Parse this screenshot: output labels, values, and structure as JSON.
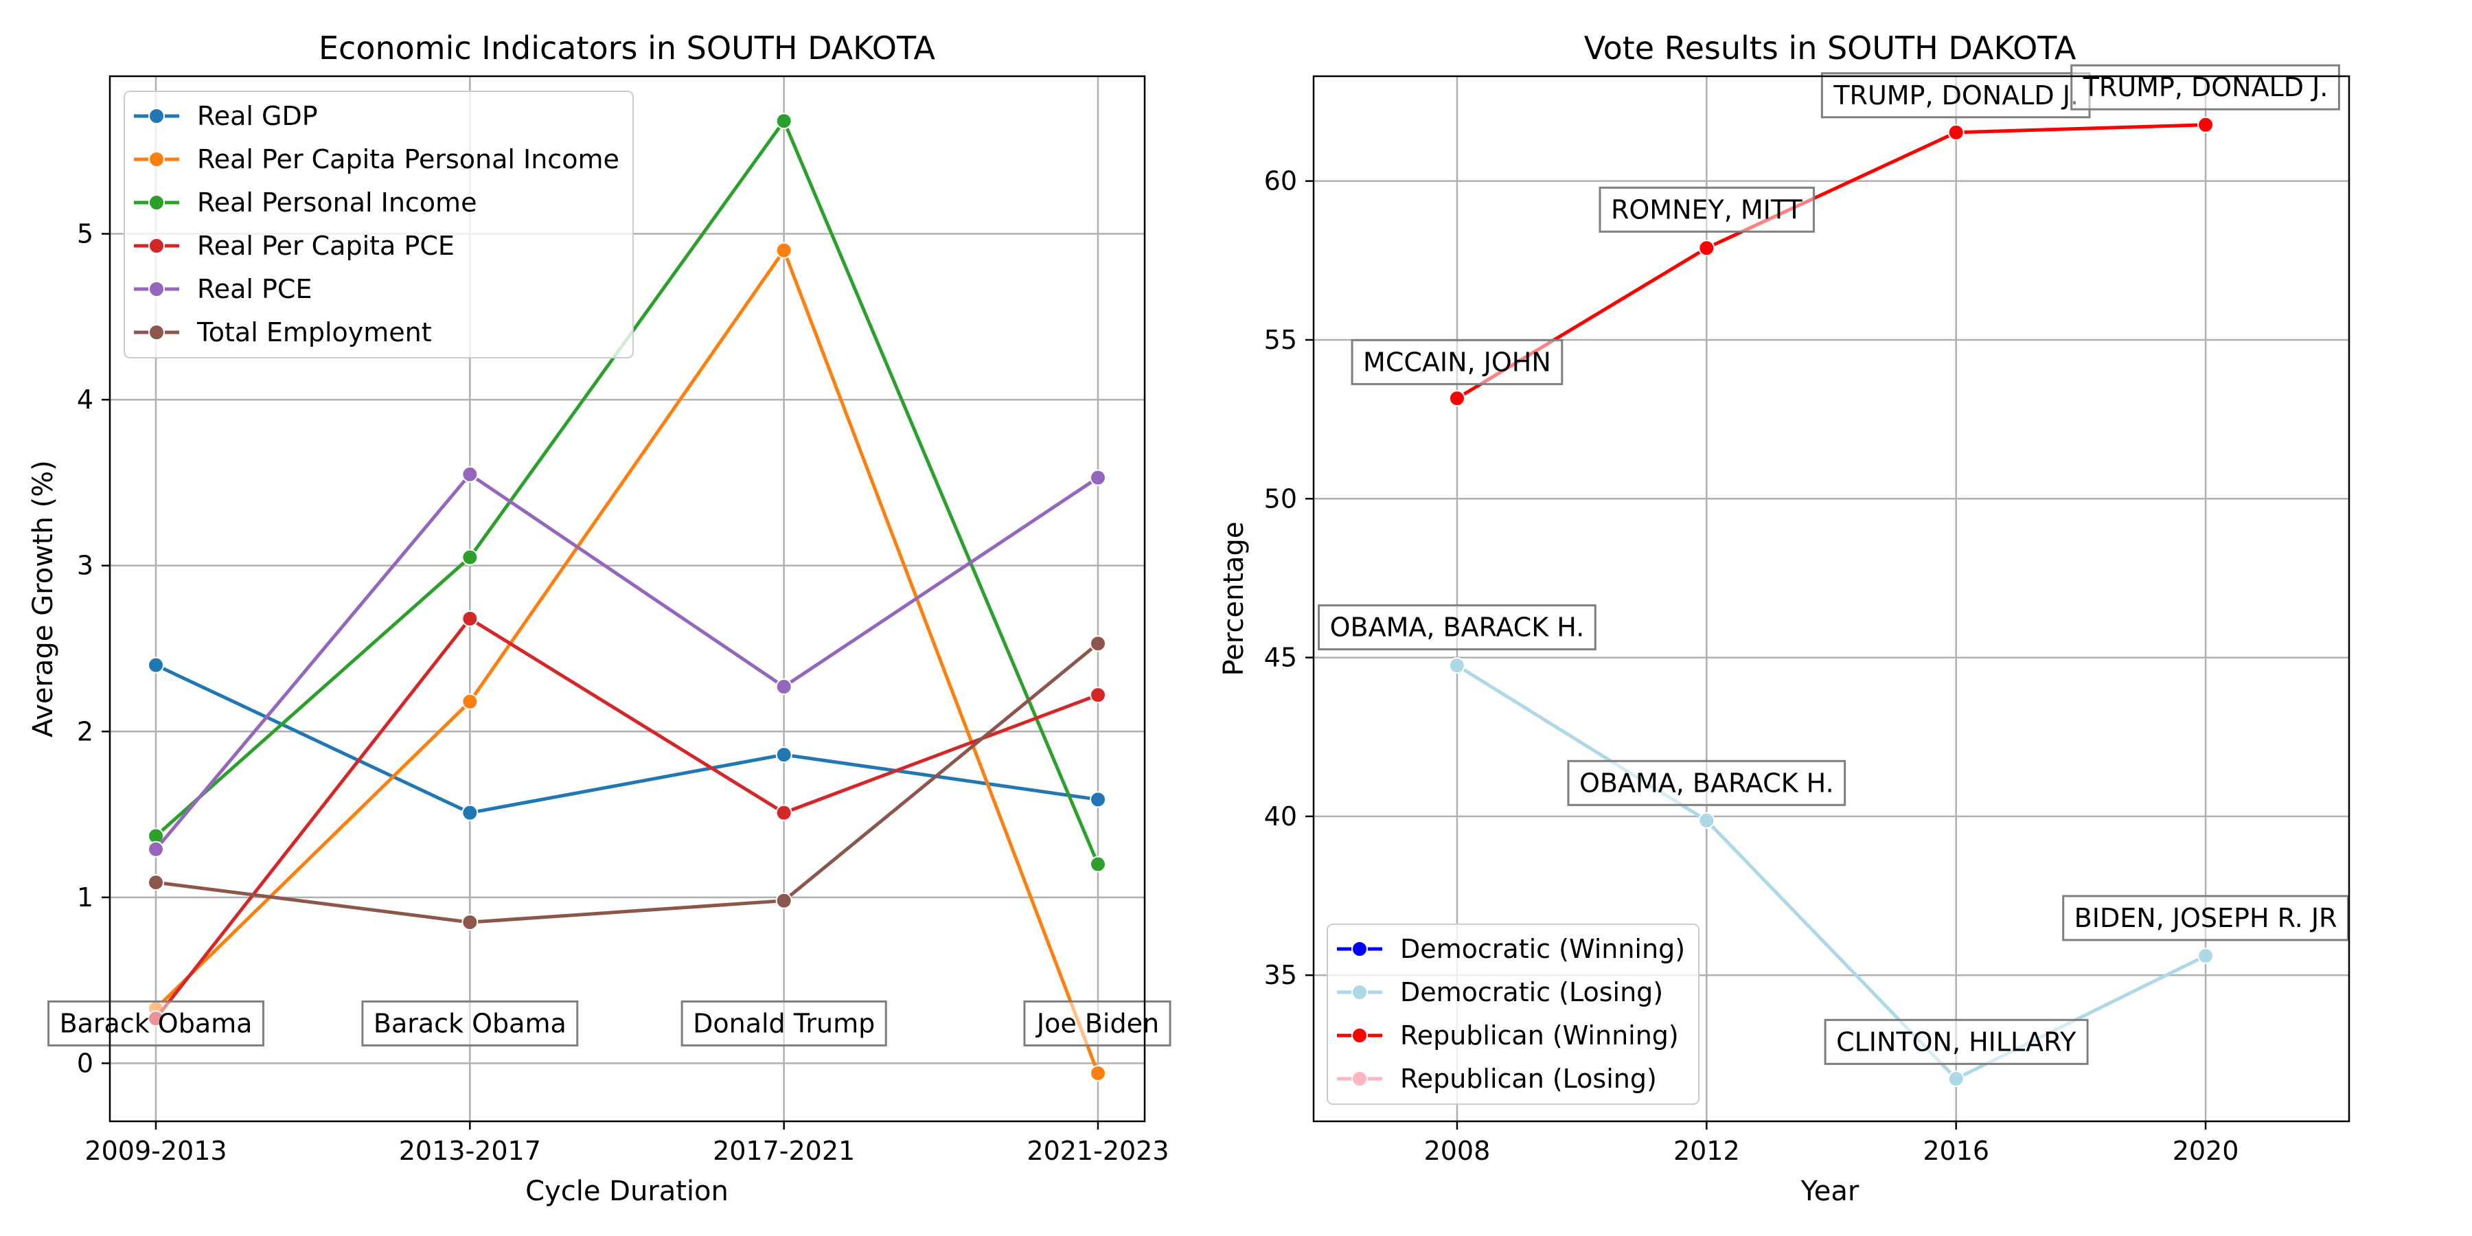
{
  "chart_data": [
    {
      "type": "line",
      "title": "Economic Indicators in SOUTH DAKOTA",
      "xlabel": "Cycle Duration",
      "ylabel": "Average Growth (%)",
      "categories": [
        "2009-2013",
        "2013-2017",
        "2017-2021",
        "2021-2023"
      ],
      "ylim": [
        -0.35,
        5.95
      ],
      "yticks": [
        0,
        1,
        2,
        3,
        4,
        5
      ],
      "grid": true,
      "legend_position": "top-left",
      "series": [
        {
          "name": "Real GDP",
          "color": "#1f77b4",
          "values": [
            2.4,
            1.51,
            1.86,
            1.59
          ]
        },
        {
          "name": "Real Per Capita Personal Income",
          "color": "#ff7f0e",
          "values": [
            0.33,
            2.18,
            4.9,
            -0.06
          ]
        },
        {
          "name": "Real Personal Income",
          "color": "#2ca02c",
          "values": [
            1.37,
            3.05,
            5.68,
            1.2
          ]
        },
        {
          "name": "Real Per Capita PCE",
          "color": "#d62728",
          "values": [
            0.27,
            2.68,
            1.51,
            2.22
          ]
        },
        {
          "name": "Real PCE",
          "color": "#9467bd",
          "values": [
            1.29,
            3.55,
            2.27,
            3.53
          ]
        },
        {
          "name": "Total Employment",
          "color": "#8c564b",
          "values": [
            1.09,
            0.85,
            0.98,
            2.53
          ]
        }
      ],
      "annotations": [
        {
          "text": "Barack Obama",
          "category_index": 0,
          "y": 0.24
        },
        {
          "text": "Barack Obama",
          "category_index": 1,
          "y": 0.24
        },
        {
          "text": "Donald Trump",
          "category_index": 2,
          "y": 0.24
        },
        {
          "text": "Joe Biden",
          "category_index": 3,
          "y": 0.24
        }
      ]
    },
    {
      "type": "line",
      "title": "Vote Results in SOUTH DAKOTA",
      "xlabel": "Year",
      "ylabel": "Percentage",
      "xlim": [
        2005.7,
        2022.3
      ],
      "xticks": [
        2008,
        2012,
        2016,
        2020
      ],
      "ylim": [
        30.4,
        63.3
      ],
      "yticks": [
        35,
        40,
        45,
        50,
        55,
        60
      ],
      "grid": true,
      "legend_position": "bottom-left",
      "series": [
        {
          "name": "Democratic (Winning)",
          "color": "#0000ff",
          "x": [],
          "values": []
        },
        {
          "name": "Democratic (Losing)",
          "color": "#add8e6",
          "x": [
            2008,
            2012,
            2016,
            2020
          ],
          "values": [
            44.75,
            39.87,
            31.74,
            35.61
          ]
        },
        {
          "name": "Republican (Winning)",
          "color": "#ff0000",
          "x": [
            2008,
            2012,
            2016,
            2020
          ],
          "values": [
            53.16,
            57.89,
            61.53,
            61.77
          ]
        },
        {
          "name": "Republican (Losing)",
          "color": "#ffb6c1",
          "x": [],
          "values": []
        }
      ],
      "annotations": [
        {
          "text": "MCCAIN, JOHN",
          "x": 2008,
          "y": 54.3
        },
        {
          "text": "ROMNEY, MITT",
          "x": 2012,
          "y": 59.1
        },
        {
          "text": "TRUMP, DONALD J.",
          "x": 2016,
          "y": 62.7
        },
        {
          "text": "TRUMP, DONALD J.",
          "x": 2020,
          "y": 62.95
        },
        {
          "text": "OBAMA, BARACK H.",
          "x": 2008,
          "y": 45.95
        },
        {
          "text": "OBAMA, BARACK H.",
          "x": 2012,
          "y": 41.05
        },
        {
          "text": "CLINTON, HILLARY",
          "x": 2016,
          "y": 32.9
        },
        {
          "text": "BIDEN, JOSEPH R. JR",
          "x": 2020,
          "y": 36.8
        }
      ]
    }
  ]
}
